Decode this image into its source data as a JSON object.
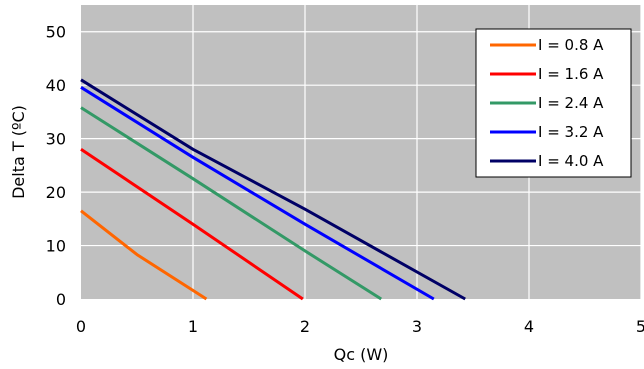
{
  "chart_data": {
    "type": "line",
    "xlabel": "Qc (W)",
    "ylabel": "Delta T (ºC)",
    "xlim": [
      0,
      5
    ],
    "ylim": [
      0,
      55
    ],
    "x_ticks": [
      "0",
      "1",
      "2",
      "3",
      "4",
      "5"
    ],
    "y_ticks": [
      "0",
      "10",
      "20",
      "30",
      "40",
      "50"
    ],
    "grid": true,
    "legend_position": "top-right",
    "plot_background": "#c0c0c0",
    "series": [
      {
        "name": "I = 0.8 A",
        "color": "#ff6600",
        "x": [
          0,
          0.5,
          1.12
        ],
        "y": [
          16.5,
          8.3,
          0
        ]
      },
      {
        "name": "I = 1.6 A",
        "color": "#ff0000",
        "x": [
          0,
          1.0,
          1.98
        ],
        "y": [
          28,
          14,
          0
        ]
      },
      {
        "name": "I = 2.4 A",
        "color": "#339966",
        "x": [
          0,
          1.0,
          2.0,
          2.68
        ],
        "y": [
          35.8,
          22.5,
          9,
          0
        ]
      },
      {
        "name": "I = 3.2 A",
        "color": "#0000ff",
        "x": [
          0,
          1.0,
          2.0,
          3.15
        ],
        "y": [
          39.6,
          26.5,
          14,
          0
        ]
      },
      {
        "name": "I = 4.0 A",
        "color": "#000066",
        "x": [
          0,
          1.0,
          2.0,
          3.43
        ],
        "y": [
          41,
          28,
          16.8,
          0
        ]
      }
    ]
  }
}
